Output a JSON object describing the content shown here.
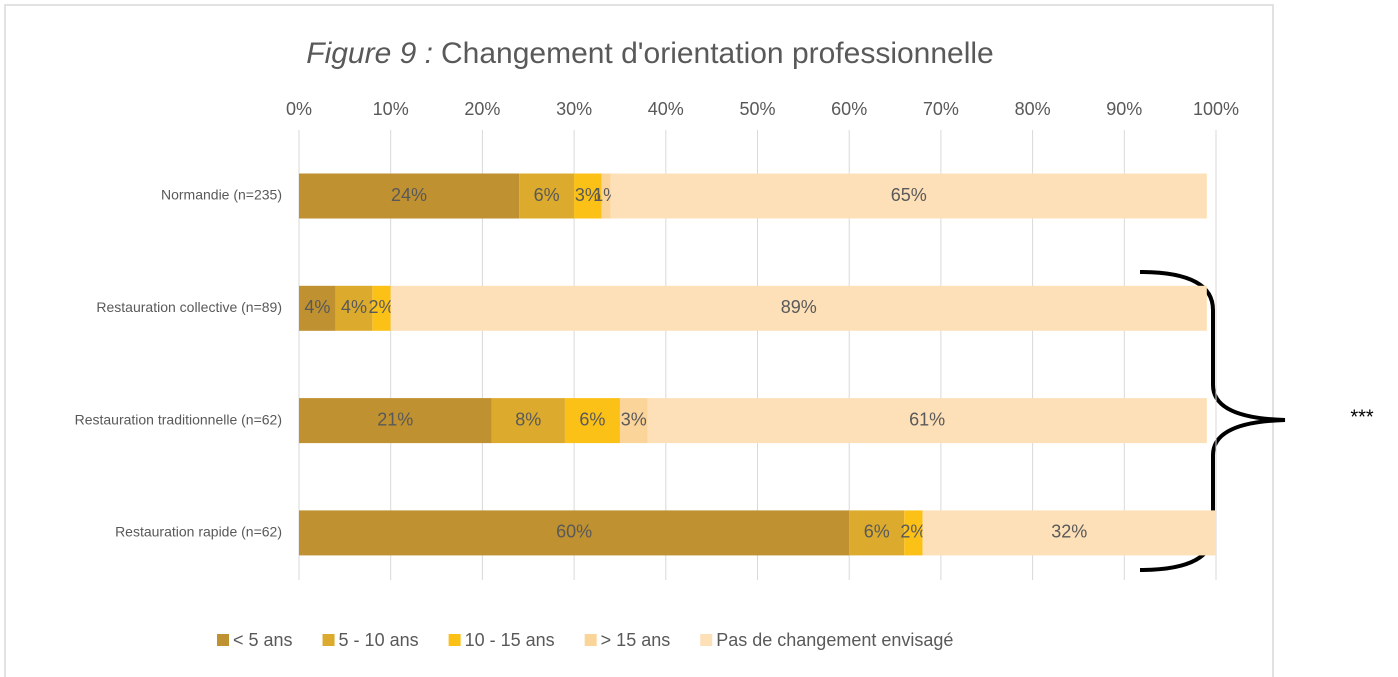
{
  "chart_data": {
    "type": "stacked_bar_horizontal",
    "title_label": "Figure 9 :",
    "title": "Changement d'orientation professionnelle",
    "categories": [
      "Normandie (n=235)",
      "Restauration collective (n=89)",
      "Restauration traditionnelle (n=62)",
      "Restauration rapide (n=62)"
    ],
    "series": [
      {
        "name": "< 5 ans",
        "color": "#bf9130",
        "values": [
          24,
          4,
          21,
          60
        ],
        "value_labels": [
          "24%",
          "4%",
          "21%",
          "60%"
        ]
      },
      {
        "name": "5 - 10 ans",
        "color": "#dcab2e",
        "values": [
          6,
          4,
          8,
          6
        ],
        "value_labels": [
          "6%",
          "4%",
          "8%",
          "6%"
        ]
      },
      {
        "name": "10 - 15 ans",
        "color": "#fcc117",
        "values": [
          3,
          2,
          6,
          2
        ],
        "value_labels": [
          "3%",
          "2%",
          "6%",
          "2%"
        ]
      },
      {
        "name": "> 15 ans",
        "color": "#fbd49a",
        "values": [
          1,
          null,
          3,
          null
        ],
        "value_labels": [
          "1%",
          null,
          "3%",
          null
        ]
      },
      {
        "name": "Pas de changement envisagé",
        "color": "#fde0b8",
        "values": [
          65,
          89,
          61,
          32
        ],
        "value_labels": [
          "65%",
          "89%",
          "61%",
          "32%"
        ]
      }
    ],
    "xlim": [
      0,
      100
    ],
    "xticks": [
      {
        "value": 0,
        "label": "0%"
      },
      {
        "value": 10,
        "label": "10%"
      },
      {
        "value": 20,
        "label": "20%"
      },
      {
        "value": 30,
        "label": "30%"
      },
      {
        "value": 40,
        "label": "40%"
      },
      {
        "value": 50,
        "label": "50%"
      },
      {
        "value": 60,
        "label": "60%"
      },
      {
        "value": 70,
        "label": "70%"
      },
      {
        "value": 80,
        "label": "80%"
      },
      {
        "value": 90,
        "label": "90%"
      },
      {
        "value": 100,
        "label": "100%"
      }
    ],
    "grid": true,
    "legend": "bottom",
    "annotation": "***"
  }
}
